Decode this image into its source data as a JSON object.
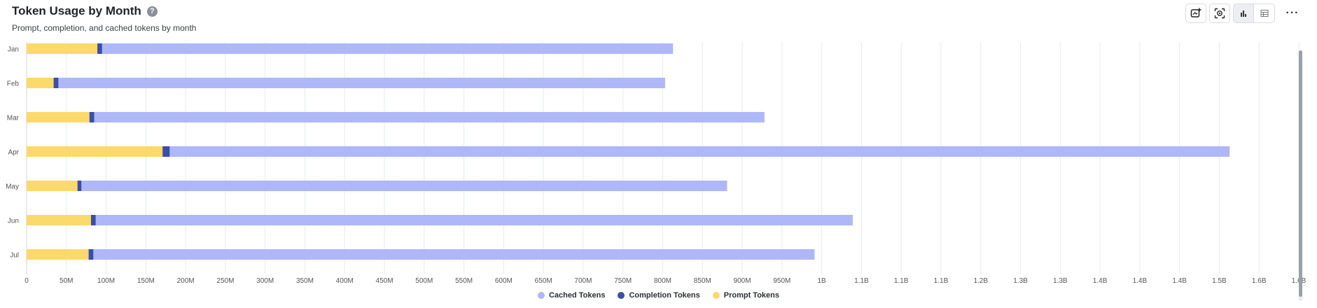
{
  "header": {
    "title": "Token Usage by Month",
    "help_glyph": "?",
    "subtitle": "Prompt, completion, and cached tokens by month"
  },
  "toolbar": {
    "icons": [
      "add-to-dashboard-icon",
      "ai-explore-icon",
      "bar-chart-icon",
      "table-icon",
      "more-options-icon"
    ],
    "more_glyph": "···"
  },
  "colors": {
    "cached": "#aeb7f8",
    "completion": "#3b4fa8",
    "prompt": "#fcd96b",
    "grid": "#e8eaee"
  },
  "chart_data": {
    "type": "bar",
    "orientation": "horizontal",
    "stacked": true,
    "categories": [
      "Jan",
      "Feb",
      "Mar",
      "Apr",
      "May",
      "Jun",
      "Jul"
    ],
    "series": [
      {
        "name": "Prompt Tokens",
        "values": [
          89,
          34,
          79,
          171,
          64,
          81,
          78
        ]
      },
      {
        "name": "Completion Tokens",
        "values": [
          6,
          6,
          6,
          9,
          5,
          6,
          6
        ]
      },
      {
        "name": "Cached Tokens",
        "values": [
          718,
          763,
          843,
          1333,
          812,
          952,
          907
        ]
      }
    ],
    "xlim": [
      0,
      1600
    ],
    "xticks": [
      0,
      50,
      100,
      150,
      200,
      250,
      300,
      350,
      400,
      450,
      500,
      550,
      600,
      650,
      700,
      750,
      800,
      850,
      900,
      950,
      1000,
      1050,
      1100,
      1150,
      1200,
      1250,
      1300,
      1350,
      1400,
      1450,
      1500,
      1550,
      1600
    ],
    "xticklabels": [
      "0",
      "50M",
      "100M",
      "150M",
      "200M",
      "250M",
      "300M",
      "350M",
      "400M",
      "450M",
      "500M",
      "550M",
      "600M",
      "650M",
      "700M",
      "750M",
      "800M",
      "850M",
      "900M",
      "950M",
      "1B",
      "1.1B",
      "1.1B",
      "1.1B",
      "1.2B",
      "1.3B",
      "1.3B",
      "1.4B",
      "1.4B",
      "1.4B",
      "1.5B",
      "1.6B",
      "1.6B"
    ],
    "legend_order": [
      "Cached Tokens",
      "Completion Tokens",
      "Prompt Tokens"
    ],
    "legend_position": "bottom",
    "grid": true
  }
}
